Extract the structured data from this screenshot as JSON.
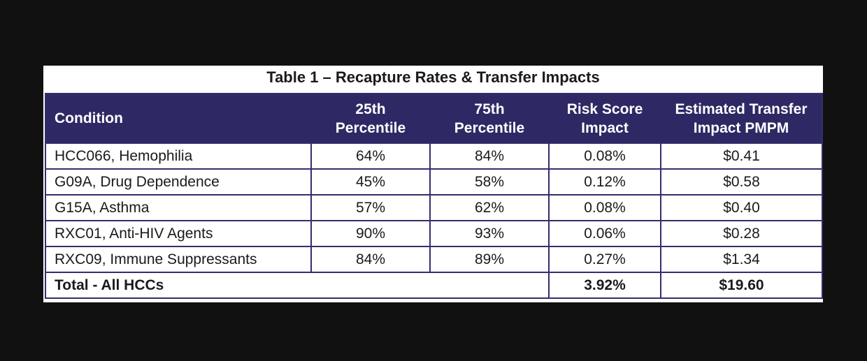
{
  "table": {
    "title": "Table 1 – Recapture Rates & Transfer Impacts",
    "headers": [
      {
        "line1": "Condition",
        "line2": ""
      },
      {
        "line1": "25th",
        "line2": "Percentile"
      },
      {
        "line1": "75th",
        "line2": "Percentile"
      },
      {
        "line1": "Risk Score",
        "line2": "Impact"
      },
      {
        "line1": "Estimated Transfer",
        "line2": "Impact PMPM"
      }
    ],
    "rows": [
      [
        "HCC066, Hemophilia",
        "64%",
        "84%",
        "0.08%",
        "$0.41"
      ],
      [
        "G09A, Drug Dependence",
        "45%",
        "58%",
        "0.12%",
        "$0.58"
      ],
      [
        "G15A, Asthma",
        "57%",
        "62%",
        "0.08%",
        "$0.40"
      ],
      [
        "RXC01, Anti-HIV Agents",
        "90%",
        "93%",
        "0.06%",
        "$0.28"
      ],
      [
        "RXC09, Immune Suppressants",
        "84%",
        "89%",
        "0.27%",
        "$1.34"
      ]
    ],
    "total": {
      "label": "Total - All HCCs",
      "risk_score_impact": "3.92%",
      "transfer_impact_pmpm": "$19.60"
    }
  },
  "colors": {
    "header_background": "#2e2964",
    "border": "#332e6b",
    "page_background": "#111111"
  }
}
